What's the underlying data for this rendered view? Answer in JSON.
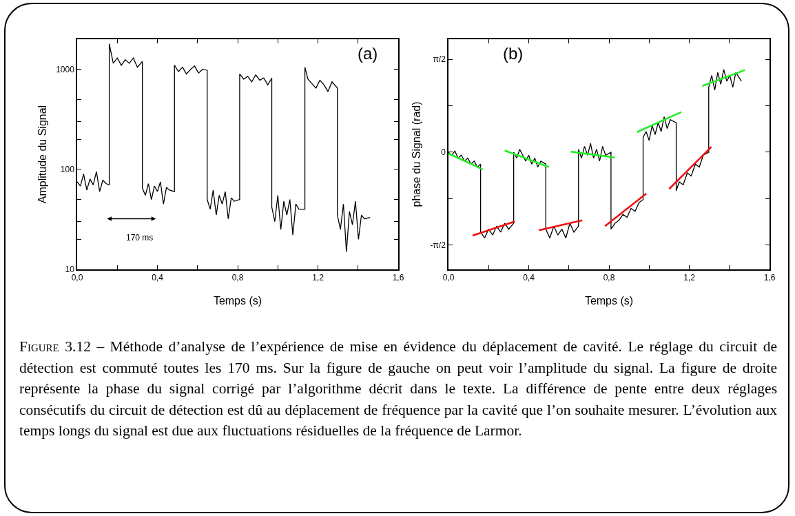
{
  "chart_data": [
    {
      "type": "line",
      "xlabel": "Temps (s)",
      "ylabel": "Amplitude du Signal",
      "log": "y",
      "grid": false,
      "marker": "none",
      "line_style": "solid",
      "xlim": [
        0,
        1.6
      ],
      "xticks": [
        {
          "value": 0,
          "label": "0,0"
        },
        {
          "value": 0.2,
          "label": null
        },
        {
          "value": 0.4,
          "label": "0,4"
        },
        {
          "value": 0.6,
          "label": null
        },
        {
          "value": 0.8,
          "label": "0,8"
        },
        {
          "value": 1.0,
          "label": null
        },
        {
          "value": 1.2,
          "label": "1,2"
        },
        {
          "value": 1.4,
          "label": null
        },
        {
          "value": 1.6,
          "label": "1,6"
        }
      ],
      "ylim": [
        10,
        2000
      ],
      "yticks": [
        10,
        {
          "value": 20,
          "label": null
        },
        {
          "value": 30,
          "label": null
        },
        {
          "value": 50,
          "label": null
        },
        100,
        {
          "value": 200,
          "label": null
        },
        {
          "value": 300,
          "label": null
        },
        {
          "value": 500,
          "label": null
        },
        1000
      ],
      "annotations": [
        "(a)",
        "170 ms",
        "Figure 3.12 – Méthode d’analyse de l’expérience de mise en évidence du déplacement de cavité. Le réglage du circuit de détection est commuté toutes les 170 ms. Sur la figure de gauche on peut voir l’amplitude du signal. La figure de droite représente la phase du signal corrigé par l’algorithme décrit dans le texte. La différence de pente entre deux réglages consécutifs du circuit de détection est dû au déplacement de fréquence par la cavité que l’on souhaite mesurer. L’évolution aux temps longs du signal est due aux fluctuations résiduelles de la fréquence de Larmor."
      ],
      "x": [
        0,
        0.016,
        0.032,
        0.048,
        0.064,
        0.08,
        0.096,
        0.112,
        0.128,
        0.144,
        0.16,
        0.16,
        0.18,
        0.2,
        0.22,
        0.24,
        0.26,
        0.28,
        0.3,
        0.325,
        0.325,
        0.34,
        0.355,
        0.37,
        0.385,
        0.4,
        0.415,
        0.43,
        0.445,
        0.46,
        0.485,
        0.485,
        0.505,
        0.525,
        0.545,
        0.565,
        0.585,
        0.605,
        0.625,
        0.648,
        0.648,
        0.663,
        0.678,
        0.693,
        0.708,
        0.723,
        0.738,
        0.753,
        0.768,
        0.783,
        0.81,
        0.81,
        0.83,
        0.85,
        0.87,
        0.89,
        0.91,
        0.93,
        0.95,
        0.97,
        0.97,
        0.985,
        1.0,
        1.015,
        1.03,
        1.045,
        1.06,
        1.075,
        1.09,
        1.105,
        1.135,
        1.135,
        1.15,
        1.17,
        1.19,
        1.21,
        1.23,
        1.25,
        1.27,
        1.297,
        1.297,
        1.312,
        1.327,
        1.342,
        1.357,
        1.372,
        1.387,
        1.402,
        1.417,
        1.432,
        1.46
      ],
      "series": [
        {
          "color": "#000000",
          "values": [
            75,
            68,
            90,
            62,
            80,
            70,
            95,
            60,
            78,
            72,
            70,
            1800,
            1150,
            1300,
            1100,
            1250,
            1150,
            1300,
            1050,
            1200,
            65,
            55,
            72,
            50,
            68,
            60,
            75,
            45,
            66,
            62,
            60,
            1100,
            950,
            1050,
            900,
            1000,
            1080,
            920,
            1000,
            980,
            50,
            40,
            62,
            35,
            55,
            45,
            60,
            32,
            52,
            48,
            50,
            900,
            800,
            850,
            750,
            880,
            780,
            820,
            700,
            820,
            42,
            30,
            55,
            25,
            48,
            35,
            50,
            22,
            45,
            40,
            40,
            1050,
            800,
            720,
            650,
            780,
            700,
            600,
            750,
            650,
            35,
            25,
            45,
            15,
            38,
            28,
            48,
            20,
            35,
            32,
            33
          ]
        }
      ]
    },
    {
      "type": "line",
      "xlabel": "Temps (s)",
      "ylabel": "phase du Signal (rad)",
      "grid": false,
      "marker": "none",
      "line_style": "solid",
      "xlim": [
        0,
        1.6
      ],
      "xticks": [
        {
          "value": 0,
          "label": "0,0"
        },
        {
          "value": 0.2,
          "label": null
        },
        {
          "value": 0.4,
          "label": "0,4"
        },
        {
          "value": 0.6,
          "label": null
        },
        {
          "value": 0.8,
          "label": "0,8"
        },
        {
          "value": 1.0,
          "label": null
        },
        {
          "value": 1.2,
          "label": "1,2"
        },
        {
          "value": 1.4,
          "label": null
        },
        {
          "value": 1.6,
          "label": "1,6"
        }
      ],
      "ylim": [
        -1.98,
        1.91
      ],
      "yticks": [
        {
          "value": -1.5708,
          "label": "-π/2"
        },
        {
          "value": -0.7854,
          "label": null
        },
        0,
        {
          "value": 0.7854,
          "label": null
        },
        {
          "value": 1.5708,
          "label": "π/2"
        }
      ],
      "annotations": [
        "(b)"
      ],
      "x": [
        0,
        0.016,
        0.032,
        0.048,
        0.064,
        0.08,
        0.096,
        0.112,
        0.128,
        0.144,
        0.16,
        0.16,
        0.18,
        0.2,
        0.22,
        0.24,
        0.26,
        0.28,
        0.3,
        0.325,
        0.325,
        0.34,
        0.355,
        0.37,
        0.385,
        0.4,
        0.415,
        0.43,
        0.445,
        0.46,
        0.485,
        0.485,
        0.505,
        0.525,
        0.545,
        0.565,
        0.585,
        0.605,
        0.625,
        0.648,
        0.648,
        0.663,
        0.678,
        0.693,
        0.708,
        0.723,
        0.738,
        0.753,
        0.768,
        0.783,
        0.81,
        0.81,
        0.83,
        0.85,
        0.87,
        0.89,
        0.91,
        0.93,
        0.95,
        0.97,
        0.97,
        0.985,
        1.0,
        1.015,
        1.03,
        1.045,
        1.06,
        1.075,
        1.09,
        1.105,
        1.135,
        1.135,
        1.15,
        1.17,
        1.19,
        1.21,
        1.23,
        1.25,
        1.27,
        1.297,
        1.297,
        1.312,
        1.327,
        1.342,
        1.357,
        1.372,
        1.387,
        1.402,
        1.417,
        1.432,
        1.46
      ],
      "series": [
        {
          "color": "#000000",
          "values": [
            0.0,
            -0.05,
            0.02,
            -0.1,
            -0.05,
            -0.15,
            -0.1,
            -0.2,
            -0.15,
            -0.25,
            -0.2,
            -1.35,
            -1.45,
            -1.3,
            -1.4,
            -1.25,
            -1.35,
            -1.2,
            -1.3,
            -1.2,
            0.0,
            -0.1,
            0.05,
            -0.05,
            -0.15,
            -0.05,
            -0.2,
            -0.1,
            -0.25,
            -0.15,
            -0.2,
            -1.3,
            -1.45,
            -1.25,
            -1.4,
            -1.3,
            -1.45,
            -1.2,
            -1.35,
            -1.25,
            0.05,
            -0.1,
            0.1,
            -0.05,
            0.15,
            -0.1,
            0.05,
            -0.15,
            0.1,
            -0.05,
            0,
            -1.3,
            -1.2,
            -1.15,
            -1.05,
            -1.1,
            -0.95,
            -1.0,
            -0.85,
            -0.8,
            0.25,
            0.35,
            0.2,
            0.45,
            0.3,
            0.5,
            0.35,
            0.6,
            0.4,
            0.55,
            0.5,
            -0.65,
            -0.5,
            -0.55,
            -0.35,
            -0.4,
            -0.2,
            -0.25,
            -0.05,
            0.0,
            1.1,
            1.3,
            1.05,
            1.35,
            1.15,
            1.4,
            1.2,
            1.3,
            1.1,
            1.35,
            1.2
          ]
        },
        {
          "type": "line",
          "color": "#22ee22",
          "x": [
            0,
            0.17
          ],
          "values": [
            -0.02,
            -0.29
          ]
        },
        {
          "type": "line",
          "color": "#22ee22",
          "x": [
            0.28,
            0.5
          ],
          "values": [
            0.03,
            -0.25
          ]
        },
        {
          "type": "line",
          "color": "#22ee22",
          "x": [
            0.61,
            0.83
          ],
          "values": [
            0.01,
            -0.09
          ]
        },
        {
          "type": "line",
          "color": "#22ee22",
          "x": [
            0.94,
            1.16
          ],
          "values": [
            0.34,
            0.68
          ]
        },
        {
          "type": "line",
          "color": "#22ee22",
          "x": [
            1.265,
            1.478
          ],
          "values": [
            1.12,
            1.39
          ]
        },
        {
          "type": "line",
          "color": "#ee1111",
          "x": [
            0.12,
            0.33
          ],
          "values": [
            -1.41,
            -1.17
          ]
        },
        {
          "type": "line",
          "color": "#ee1111",
          "x": [
            0.45,
            0.667
          ],
          "values": [
            -1.32,
            -1.15
          ]
        },
        {
          "type": "line",
          "color": "#ee1111",
          "x": [
            0.78,
            0.986
          ],
          "values": [
            -1.25,
            -0.7
          ]
        },
        {
          "type": "line",
          "color": "#ee1111",
          "x": [
            1.1,
            1.31
          ],
          "values": [
            -0.62,
            0.09
          ]
        }
      ]
    }
  ]
}
